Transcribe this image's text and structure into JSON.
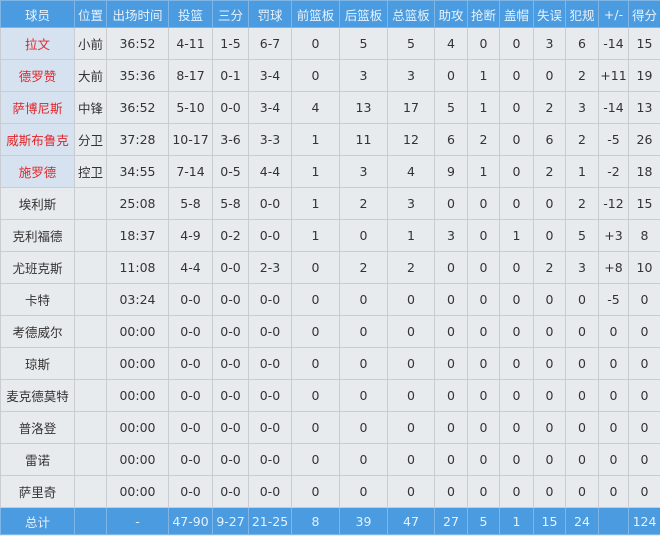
{
  "headers": [
    "球员",
    "位置",
    "出场时间",
    "投篮",
    "三分",
    "罚球",
    "前篮板",
    "后篮板",
    "总篮板",
    "助攻",
    "抢断",
    "盖帽",
    "失误",
    "犯规",
    "+/-",
    "得分"
  ],
  "rows": [
    {
      "starter": true,
      "cells": [
        "拉文",
        "小前",
        "36:52",
        "4-11",
        "1-5",
        "6-7",
        "0",
        "5",
        "5",
        "4",
        "0",
        "0",
        "3",
        "6",
        "-14",
        "15"
      ]
    },
    {
      "starter": true,
      "cells": [
        "德罗赞",
        "大前",
        "35:36",
        "8-17",
        "0-1",
        "3-4",
        "0",
        "3",
        "3",
        "0",
        "1",
        "0",
        "0",
        "2",
        "+11",
        "19"
      ]
    },
    {
      "starter": true,
      "cells": [
        "萨博尼斯",
        "中锋",
        "36:52",
        "5-10",
        "0-0",
        "3-4",
        "4",
        "13",
        "17",
        "5",
        "1",
        "0",
        "2",
        "3",
        "-14",
        "13"
      ]
    },
    {
      "starter": true,
      "cells": [
        "威斯布鲁克",
        "分卫",
        "37:28",
        "10-17",
        "3-6",
        "3-3",
        "1",
        "11",
        "12",
        "6",
        "2",
        "0",
        "6",
        "2",
        "-5",
        "26"
      ]
    },
    {
      "starter": true,
      "cells": [
        "施罗德",
        "控卫",
        "34:55",
        "7-14",
        "0-5",
        "4-4",
        "1",
        "3",
        "4",
        "9",
        "1",
        "0",
        "2",
        "1",
        "-2",
        "18"
      ]
    },
    {
      "starter": false,
      "cells": [
        "埃利斯",
        "",
        "25:08",
        "5-8",
        "5-8",
        "0-0",
        "1",
        "2",
        "3",
        "0",
        "0",
        "0",
        "0",
        "2",
        "-12",
        "15"
      ]
    },
    {
      "starter": false,
      "cells": [
        "克利福德",
        "",
        "18:37",
        "4-9",
        "0-2",
        "0-0",
        "1",
        "0",
        "1",
        "3",
        "0",
        "1",
        "0",
        "5",
        "+3",
        "8"
      ]
    },
    {
      "starter": false,
      "cells": [
        "尤班克斯",
        "",
        "11:08",
        "4-4",
        "0-0",
        "2-3",
        "0",
        "2",
        "2",
        "0",
        "0",
        "0",
        "2",
        "3",
        "+8",
        "10"
      ]
    },
    {
      "starter": false,
      "cells": [
        "卡特",
        "",
        "03:24",
        "0-0",
        "0-0",
        "0-0",
        "0",
        "0",
        "0",
        "0",
        "0",
        "0",
        "0",
        "0",
        "-5",
        "0"
      ]
    },
    {
      "starter": false,
      "cells": [
        "考德威尔",
        "",
        "00:00",
        "0-0",
        "0-0",
        "0-0",
        "0",
        "0",
        "0",
        "0",
        "0",
        "0",
        "0",
        "0",
        "0",
        "0"
      ]
    },
    {
      "starter": false,
      "cells": [
        "琼斯",
        "",
        "00:00",
        "0-0",
        "0-0",
        "0-0",
        "0",
        "0",
        "0",
        "0",
        "0",
        "0",
        "0",
        "0",
        "0",
        "0"
      ]
    },
    {
      "starter": false,
      "cells": [
        "麦克德莫特",
        "",
        "00:00",
        "0-0",
        "0-0",
        "0-0",
        "0",
        "0",
        "0",
        "0",
        "0",
        "0",
        "0",
        "0",
        "0",
        "0"
      ]
    },
    {
      "starter": false,
      "cells": [
        "普洛登",
        "",
        "00:00",
        "0-0",
        "0-0",
        "0-0",
        "0",
        "0",
        "0",
        "0",
        "0",
        "0",
        "0",
        "0",
        "0",
        "0"
      ]
    },
    {
      "starter": false,
      "cells": [
        "雷诺",
        "",
        "00:00",
        "0-0",
        "0-0",
        "0-0",
        "0",
        "0",
        "0",
        "0",
        "0",
        "0",
        "0",
        "0",
        "0",
        "0"
      ]
    },
    {
      "starter": false,
      "cells": [
        "萨里奇",
        "",
        "00:00",
        "0-0",
        "0-0",
        "0-0",
        "0",
        "0",
        "0",
        "0",
        "0",
        "0",
        "0",
        "0",
        "0",
        "0"
      ]
    }
  ],
  "totals": [
    "总计",
    "",
    "-",
    "47-90",
    "9-27",
    "21-25",
    "8",
    "39",
    "47",
    "27",
    "5",
    "1",
    "15",
    "24",
    "",
    "124"
  ],
  "colors": {
    "header": "#4a9be0",
    "starter_name": "#e0262b",
    "row_bg": "#e8ebee",
    "starter_bg": "#d6e2ef"
  }
}
